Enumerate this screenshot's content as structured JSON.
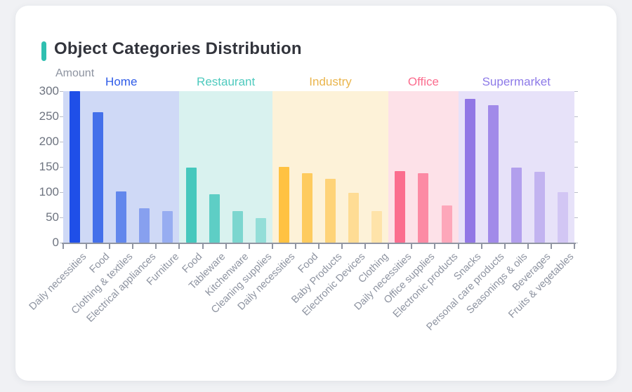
{
  "card": {
    "title": "Object Categories Distribution",
    "accent_color": "#2fbfb0"
  },
  "chart_data": {
    "type": "bar",
    "title": "Object Categories Distribution",
    "ylabel": "Amount",
    "xlabel": "",
    "ylim": [
      0,
      300
    ],
    "yticks": [
      0,
      50,
      100,
      150,
      200,
      250,
      300
    ],
    "grid": false,
    "legend_position": "grouped-band-headers",
    "groups": [
      {
        "name": "Home",
        "label_color": "#2e5be8",
        "band_color": "#cfd9f6",
        "bars": [
          {
            "label": "Daily necessities",
            "value": 300,
            "color": "#1f4fe8"
          },
          {
            "label": "Food",
            "value": 258,
            "color": "#4470ea"
          },
          {
            "label": "Clothing & textiles",
            "value": 101,
            "color": "#6287ec"
          },
          {
            "label": "Electrical appliances",
            "value": 68,
            "color": "#87a0ef"
          },
          {
            "label": "Furniture",
            "value": 63,
            "color": "#97adf1"
          }
        ]
      },
      {
        "name": "Restaurant",
        "label_color": "#4ecabe",
        "band_color": "#d9f2ef",
        "bars": [
          {
            "label": "Food",
            "value": 148,
            "color": "#45c8bd"
          },
          {
            "label": "Tableware",
            "value": 96,
            "color": "#5ecec5"
          },
          {
            "label": "Kitchenware",
            "value": 63,
            "color": "#7cd6cf"
          },
          {
            "label": "Cleaning supplies",
            "value": 49,
            "color": "#93ded8"
          }
        ]
      },
      {
        "name": "Industry",
        "label_color": "#eab54c",
        "band_color": "#fdf2d8",
        "bars": [
          {
            "label": "Daily necessities",
            "value": 150,
            "color": "#ffc242"
          },
          {
            "label": "Food",
            "value": 138,
            "color": "#fecb5e"
          },
          {
            "label": "Baby Products",
            "value": 126,
            "color": "#fed378"
          },
          {
            "label": "Electronic Devices",
            "value": 98,
            "color": "#fedc94"
          },
          {
            "label": "Clothing",
            "value": 62,
            "color": "#fee3a9"
          }
        ]
      },
      {
        "name": "Office",
        "label_color": "#fb6d8e",
        "band_color": "#fde1e8",
        "bars": [
          {
            "label": "Daily necessities",
            "value": 142,
            "color": "#fb6d8e"
          },
          {
            "label": "Office supplies",
            "value": 138,
            "color": "#fc8aa4"
          },
          {
            "label": "Electronic products",
            "value": 74,
            "color": "#fda7ba"
          }
        ]
      },
      {
        "name": "Supermarket",
        "label_color": "#8d7ae8",
        "band_color": "#e7e2f9",
        "bars": [
          {
            "label": "Snacks",
            "value": 285,
            "color": "#9177e5"
          },
          {
            "label": "Personal care products",
            "value": 272,
            "color": "#a18ae9"
          },
          {
            "label": "Seasonings & oils",
            "value": 148,
            "color": "#b29fed"
          },
          {
            "label": "Beverages",
            "value": 140,
            "color": "#c2b3f0"
          },
          {
            "label": "Fruits & vegetables",
            "value": 100,
            "color": "#d2c6f4"
          }
        ]
      }
    ]
  }
}
